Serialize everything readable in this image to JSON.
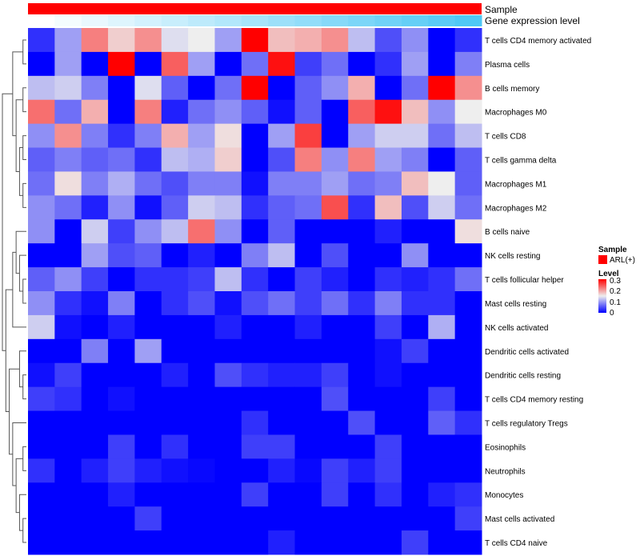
{
  "chart_data": {
    "type": "heatmap",
    "annotations": {
      "sample_label": "Sample",
      "gene_label": "Gene expression level",
      "sample_color": "#ff0000",
      "gene_expression_colors": [
        "#ffffff",
        "#4fc8f5"
      ]
    },
    "rows": [
      "T cells CD4 memory activated",
      "Plasma cells",
      "B cells memory",
      "Macrophages M0",
      "T cells CD8",
      "T cells gamma delta",
      "Macrophages M1",
      "Macrophages M2",
      "B cells naive",
      "NK cells resting",
      "T cells follicular helper",
      "Mast cells resting",
      "NK cells activated",
      "Dendritic cells activated",
      "Dendritic cells resting",
      "T cells CD4 memory resting",
      "T cells regulatory  Tregs",
      "Eosinophils",
      "Neutrophils",
      "Monocytes",
      "Mast cells activated",
      "T cells CD4 naive"
    ],
    "values": [
      [
        0.03,
        0.1,
        0.22,
        0.17,
        0.21,
        0.14,
        0.15,
        0.1,
        0.3,
        0.18,
        0.19,
        0.21,
        0.12,
        0.05,
        0.09,
        0,
        0.03
      ],
      [
        0,
        0.1,
        0,
        0.3,
        0,
        0.24,
        0.1,
        0,
        0.07,
        0.29,
        0.04,
        0.07,
        0,
        0.03,
        0.1,
        0,
        0.08
      ],
      [
        0.12,
        0.13,
        0.08,
        0,
        0.14,
        0.06,
        0,
        0.07,
        0.3,
        0,
        0.06,
        0.09,
        0.19,
        0,
        0.07,
        0.3,
        0.21
      ],
      [
        0.23,
        0.07,
        0.19,
        0,
        0.22,
        0.02,
        0.07,
        0.09,
        0.06,
        0.01,
        0.06,
        0,
        0.24,
        0.29,
        0.18,
        0.09,
        0.15
      ],
      [
        0.09,
        0.21,
        0.08,
        0.03,
        0.08,
        0.19,
        0.1,
        0.16,
        0,
        0.1,
        0.26,
        0,
        0.1,
        0.13,
        0.13,
        0.07,
        0.12
      ],
      [
        0.06,
        0.08,
        0.06,
        0.07,
        0.03,
        0.12,
        0.11,
        0.17,
        0,
        0.05,
        0.22,
        0.09,
        0.22,
        0.1,
        0.08,
        0,
        0.06
      ],
      [
        0.07,
        0.16,
        0.08,
        0.11,
        0.07,
        0.05,
        0.08,
        0.08,
        0.01,
        0.08,
        0.08,
        0.1,
        0.07,
        0.08,
        0.18,
        0.15,
        0.06
      ],
      [
        0.09,
        0.07,
        0.02,
        0.09,
        0.01,
        0.06,
        0.13,
        0.12,
        0.03,
        0.06,
        0.07,
        0.25,
        0.03,
        0.18,
        0.05,
        0.13,
        0.07
      ],
      [
        0.09,
        0,
        0.13,
        0.04,
        0.09,
        0.12,
        0.23,
        0.09,
        0,
        0.06,
        0,
        0,
        0,
        0.02,
        0,
        0,
        0.16
      ],
      [
        0,
        0,
        0.1,
        0.05,
        0.06,
        0,
        0.02,
        0,
        0.08,
        0.12,
        0,
        0.05,
        0,
        0,
        0.09,
        0,
        0
      ],
      [
        0.06,
        0.09,
        0.04,
        0,
        0.03,
        0.03,
        0.04,
        0.12,
        0.03,
        0,
        0.04,
        0.02,
        0,
        0.03,
        0.02,
        0.03,
        0.07
      ],
      [
        0.09,
        0.03,
        0.01,
        0.08,
        0,
        0.03,
        0.05,
        0.01,
        0.05,
        0.07,
        0.04,
        0.07,
        0.03,
        0.08,
        0.03,
        0.03,
        0
      ],
      [
        0.13,
        0.01,
        0,
        0.02,
        0,
        0,
        0,
        0.02,
        0,
        0,
        0.02,
        0,
        0,
        0.04,
        0,
        0.11,
        0
      ],
      [
        0,
        0,
        0.08,
        0,
        0.1,
        0,
        0,
        0,
        0,
        0,
        0,
        0,
        0,
        0.01,
        0.04,
        0,
        0
      ],
      [
        0.01,
        0.04,
        0,
        0,
        0,
        0.02,
        0,
        0.05,
        0.03,
        0.02,
        0.02,
        0.04,
        0,
        0.01,
        0,
        0,
        0
      ],
      [
        0.04,
        0.03,
        0,
        0.01,
        0,
        0,
        0,
        0,
        0,
        0,
        0,
        0.05,
        0,
        0,
        0,
        0.04,
        0
      ],
      [
        0,
        0,
        0,
        0,
        0,
        0,
        0,
        0,
        0.03,
        0,
        0,
        0,
        0.05,
        0,
        0,
        0.06,
        0.03
      ],
      [
        0,
        0,
        0,
        0.04,
        0,
        0.03,
        0,
        0,
        0.04,
        0.04,
        0,
        0,
        0,
        0.04,
        0,
        0,
        0
      ],
      [
        0.03,
        0,
        0.02,
        0.04,
        0.02,
        0.01,
        0.005,
        0,
        0,
        0.02,
        0.005,
        0.04,
        0.02,
        0.04,
        0,
        0,
        0
      ],
      [
        0,
        0,
        0,
        0.02,
        0,
        0,
        0,
        0,
        0.04,
        0,
        0,
        0.04,
        0,
        0.03,
        0,
        0.02,
        0.03
      ],
      [
        0,
        0,
        0,
        0,
        0.04,
        0,
        0,
        0,
        0,
        0,
        0,
        0,
        0,
        0,
        0,
        0,
        0.04
      ],
      [
        0,
        0,
        0,
        0,
        0,
        0,
        0,
        0,
        0,
        0.02,
        0,
        0,
        0,
        0,
        0.04,
        0,
        0
      ]
    ],
    "color_scale": {
      "min": 0,
      "mid": 0.15,
      "max": 0.3,
      "colors": [
        "#0000ff",
        "#eeeeee",
        "#ff0000"
      ]
    },
    "legend": {
      "sample_title": "Sample",
      "sample_item": "ARL(+)",
      "level_title": "Level",
      "level_ticks": [
        "0.3",
        "0.2",
        "0.1",
        "0"
      ],
      "placement": "right"
    }
  }
}
